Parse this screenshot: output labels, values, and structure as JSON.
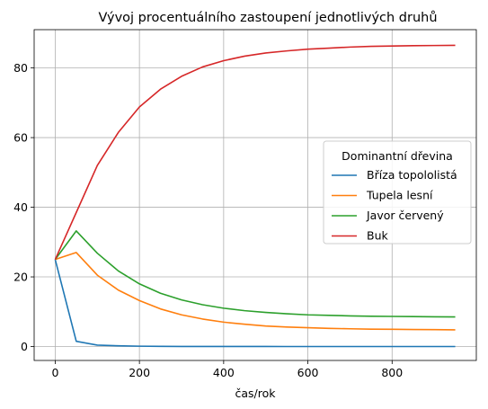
{
  "chart_data": {
    "type": "line",
    "title": "Vývoj procentuálního zastoupení jednotlivých druhů",
    "xlabel": "čas/rok",
    "ylabel": "",
    "xlim": [
      -50,
      1000
    ],
    "ylim": [
      -4,
      91
    ],
    "xticks": [
      0,
      200,
      400,
      600,
      800
    ],
    "yticks": [
      0,
      20,
      40,
      60,
      80
    ],
    "grid": true,
    "legend": {
      "title": "Dominantní dřevina",
      "placement": "center-right"
    },
    "x": [
      0,
      50,
      100,
      150,
      200,
      250,
      300,
      350,
      400,
      450,
      500,
      550,
      600,
      650,
      700,
      750,
      800,
      850,
      900,
      950
    ],
    "series": [
      {
        "name": "Bříza topololistá",
        "color": "#1f77b4",
        "values": [
          25,
          1.5,
          0.4,
          0.2,
          0.1,
          0.05,
          0.03,
          0.02,
          0.01,
          0.01,
          0.01,
          0,
          0,
          0,
          0,
          0,
          0,
          0,
          0,
          0
        ]
      },
      {
        "name": "Tupela lesní",
        "color": "#ff7f0e",
        "values": [
          25,
          27,
          20.5,
          16.2,
          13.2,
          10.8,
          9.1,
          7.9,
          7.0,
          6.4,
          5.9,
          5.6,
          5.4,
          5.2,
          5.1,
          5.0,
          4.95,
          4.9,
          4.85,
          4.8
        ]
      },
      {
        "name": "Javor červený",
        "color": "#2ca02c",
        "values": [
          25,
          33.2,
          26.8,
          21.7,
          18.0,
          15.3,
          13.4,
          12.0,
          11.0,
          10.3,
          9.8,
          9.4,
          9.1,
          8.95,
          8.8,
          8.7,
          8.65,
          8.6,
          8.55,
          8.5
        ]
      },
      {
        "name": "Buk",
        "color": "#d62728",
        "values": [
          25,
          38.5,
          52,
          61.5,
          68.8,
          73.9,
          77.6,
          80.3,
          82.1,
          83.4,
          84.3,
          84.9,
          85.4,
          85.7,
          86.0,
          86.2,
          86.3,
          86.4,
          86.45,
          86.5
        ]
      }
    ]
  }
}
